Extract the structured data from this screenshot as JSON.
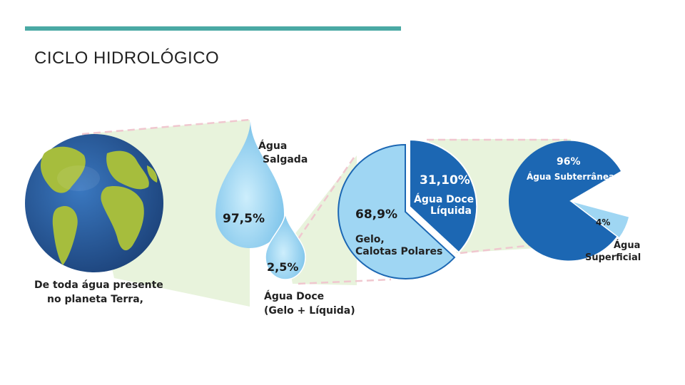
{
  "slide": {
    "title": "CICLO HIDROLÓGICO"
  },
  "colors": {
    "accent": "#4aa9a4",
    "band": "#e8f3dc",
    "band_border": "#f0c7cf",
    "ocean": "#2c5fa5",
    "land": "#a6bd3d",
    "light_blue": "#9fd6f3",
    "dark_blue": "#1c67b3",
    "text_dark": "#222222"
  },
  "diagram": {
    "earth_caption_line1": "De toda água presente",
    "earth_caption_line2": "no planeta Terra,",
    "salt_label_line1": "Água",
    "salt_label_line2": "Salgada",
    "salt_value": "97,5%",
    "fresh_value": "2,5%",
    "fresh_label_line1": "Água Doce",
    "fresh_label_line2": "(Gelo + Líquida)",
    "pie1_ice_value": "68,9%",
    "pie1_ice_label_line1": "Gelo,",
    "pie1_ice_label_line2": "Calotas Polares",
    "pie1_liquid_value": "31,10%",
    "pie1_liquid_label_line1": "Água Doce",
    "pie1_liquid_label_line2": "Líquida",
    "pie2_ground_value": "96%",
    "pie2_ground_label": "Água Subterrânea",
    "pie2_surface_value": "4%",
    "pie2_surface_label_line1": "Água",
    "pie2_surface_label_line2": "Superficial"
  }
}
